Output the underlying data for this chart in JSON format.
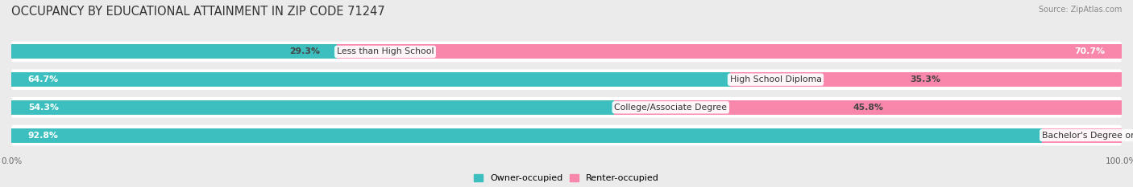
{
  "title": "OCCUPANCY BY EDUCATIONAL ATTAINMENT IN ZIP CODE 71247",
  "source": "Source: ZipAtlas.com",
  "categories": [
    "Less than High School",
    "High School Diploma",
    "College/Associate Degree",
    "Bachelor's Degree or higher"
  ],
  "owner_pct": [
    29.3,
    64.7,
    54.3,
    92.8
  ],
  "renter_pct": [
    70.7,
    35.3,
    45.8,
    7.3
  ],
  "owner_color": "#3DBFBF",
  "renter_color": "#F987AC",
  "bar_height": 0.52,
  "background_color": "#ebebeb",
  "bar_bg_color": "#ffffff",
  "title_fontsize": 10.5,
  "label_fontsize": 7.8,
  "tick_fontsize": 7.5,
  "legend_fontsize": 8,
  "source_fontsize": 7
}
